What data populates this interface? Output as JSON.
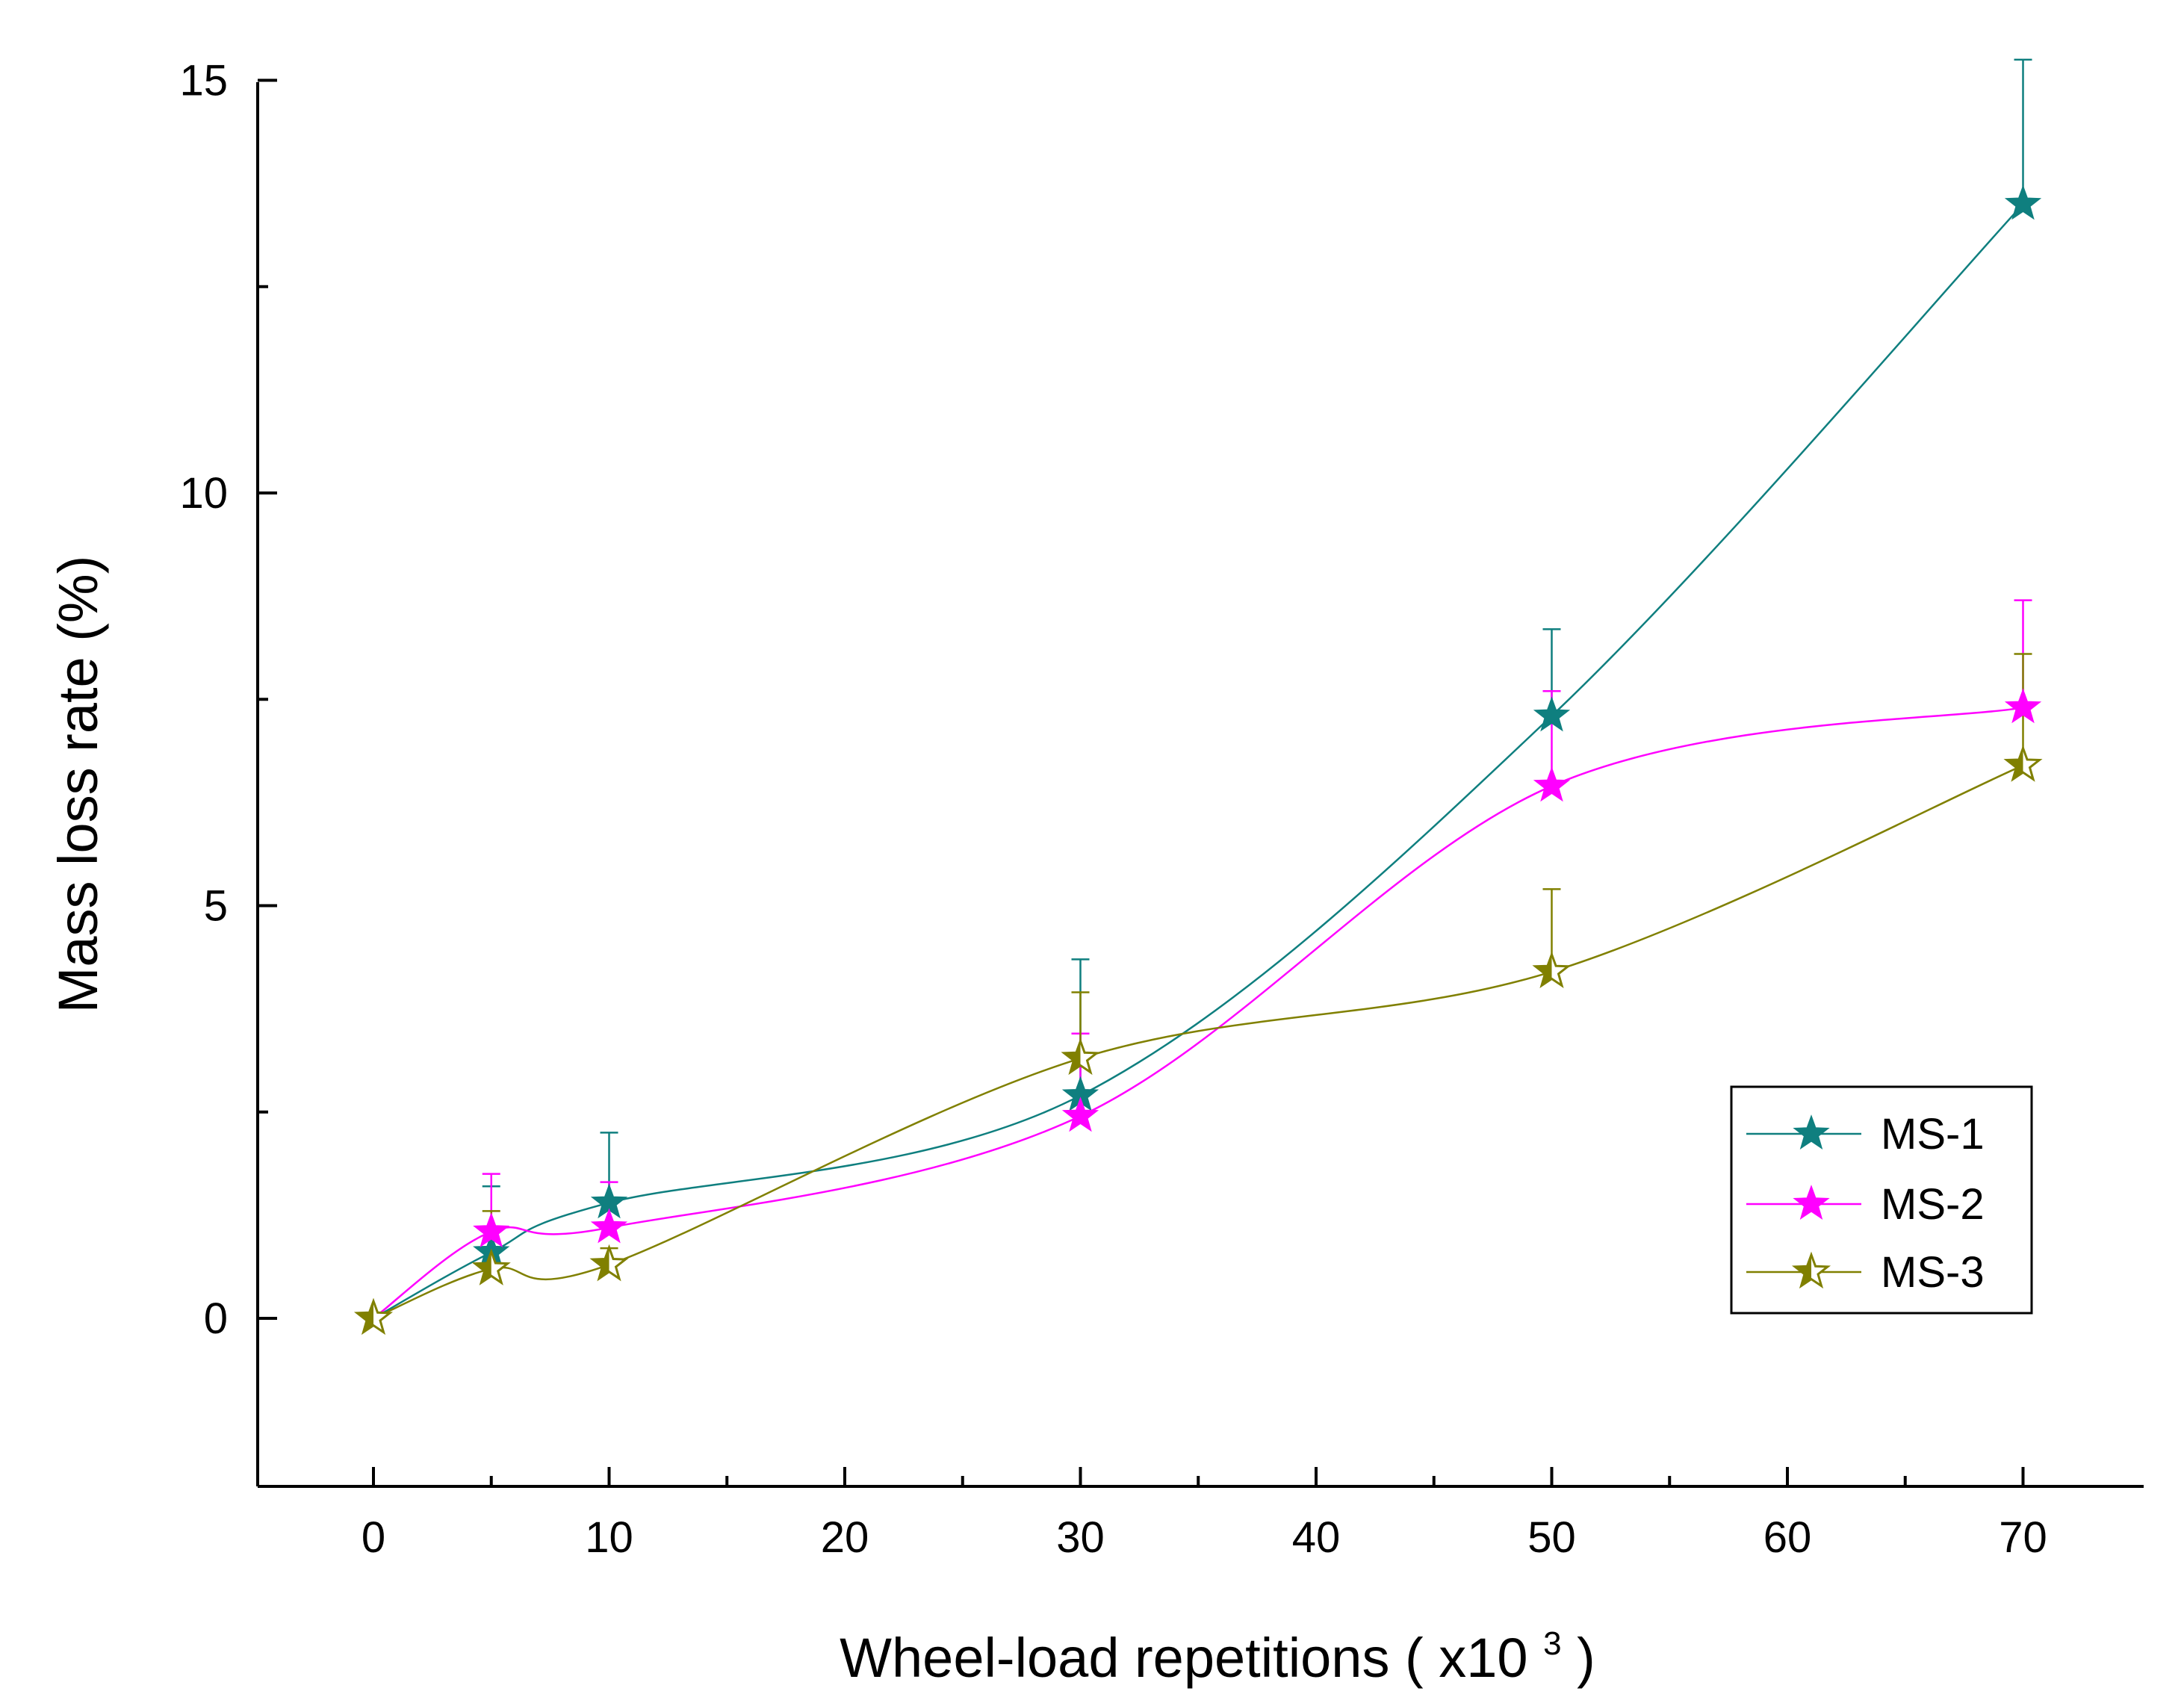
{
  "chart_data": {
    "type": "line",
    "xlabel": "Wheel-load repetitions",
    "xlabel_paren_open": "(",
    "xlabel_unit": "x10",
    "xlabel_unit_exp": "3",
    "xlabel_paren_close": ")",
    "ylabel": "Mass loss rate (%)",
    "xlim": [
      -5,
      75
    ],
    "ylim": [
      -2,
      15
    ],
    "x_ticks": [
      "0",
      "10",
      "20",
      "30",
      "40",
      "50",
      "60",
      "70"
    ],
    "y_ticks": [
      "0",
      "5",
      "10",
      "15"
    ],
    "x": [
      0,
      5,
      10,
      30,
      50,
      70
    ],
    "legend_position": "lower-right",
    "series": [
      {
        "name": "MS-1",
        "color": "#0f7f7f",
        "marker": "filled-star",
        "values": [
          0,
          0.8,
          1.4,
          2.7,
          7.3,
          13.5
        ],
        "errors": [
          0,
          0.8,
          0.85,
          1.65,
          1.05,
          1.75
        ]
      },
      {
        "name": "MS-2",
        "color": "#ff00ff",
        "marker": "filled-star",
        "values": [
          0,
          1.05,
          1.1,
          2.45,
          6.45,
          7.4
        ],
        "errors": [
          0,
          0.7,
          0.55,
          1.0,
          1.15,
          1.3
        ]
      },
      {
        "name": "MS-3",
        "color": "#808000",
        "marker": "half-star",
        "values": [
          0,
          0.6,
          0.65,
          3.15,
          4.2,
          6.7
        ],
        "errors": [
          0,
          0.7,
          0.2,
          0.8,
          1.0,
          1.35
        ]
      }
    ]
  }
}
